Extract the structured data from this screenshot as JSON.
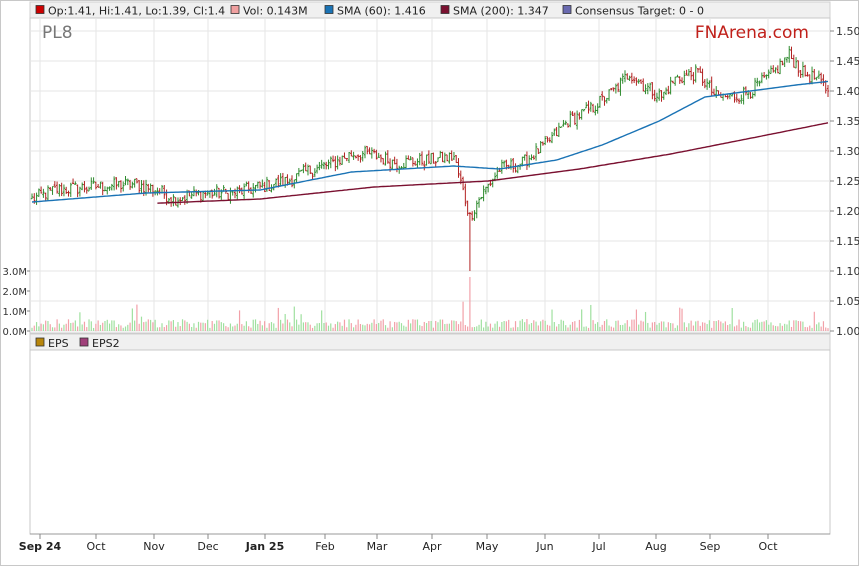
{
  "ticker": "PL8",
  "brand": "FNArena.com",
  "legend_top": [
    {
      "label": "Op:1.41, Hi:1.41, Lo:1.39, Cl:1.4",
      "color": "#cc0000"
    },
    {
      "label": "Vol: 0.143M",
      "color": "#f0a0a0"
    },
    {
      "label": "SMA (60): 1.416",
      "color": "#1a73b5"
    },
    {
      "label": "SMA (200): 1.347",
      "color": "#7a1030"
    },
    {
      "label": "Consensus Target: 0 - 0",
      "color": "#6a6ab0"
    }
  ],
  "legend_bottom": [
    {
      "label": "EPS",
      "color": "#b8860b"
    },
    {
      "label": "EPS2",
      "color": "#a0407a"
    }
  ],
  "colors": {
    "up": "#2e8b2e",
    "down": "#b22222",
    "sma60": "#1a73b5",
    "sma200": "#7a1030",
    "vol_up": "#9fe09f",
    "vol_down": "#f2a0a8",
    "grid": "#e6e6e6",
    "panel_bg": "#f0f0f0"
  },
  "chart_data": [
    {
      "type": "candlestick",
      "title": "PL8",
      "x_months": [
        "Sep 24",
        "Oct",
        "Nov",
        "Dec",
        "Jan 25",
        "Feb",
        "Mar",
        "Apr",
        "May",
        "Jun",
        "Jul",
        "Aug",
        "Sep",
        "Oct"
      ],
      "y_ticks": [
        "1.50",
        "1.45",
        "1.40",
        "1.35",
        "1.30",
        "1.25",
        "1.20",
        "1.15",
        "1.10",
        "1.05",
        "1.00"
      ],
      "ylim": [
        1.0,
        1.5
      ],
      "close_path": [
        [
          0,
          1.22
        ],
        [
          10,
          1.235
        ],
        [
          25,
          1.24
        ],
        [
          45,
          1.245
        ],
        [
          55,
          1.235
        ],
        [
          62,
          1.22
        ],
        [
          75,
          1.23
        ],
        [
          88,
          1.23
        ],
        [
          100,
          1.24
        ],
        [
          112,
          1.25
        ],
        [
          120,
          1.265
        ],
        [
          132,
          1.28
        ],
        [
          140,
          1.295
        ],
        [
          148,
          1.295
        ],
        [
          160,
          1.28
        ],
        [
          175,
          1.285
        ],
        [
          185,
          1.29
        ],
        [
          192,
          1.19
        ],
        [
          196,
          1.22
        ],
        [
          205,
          1.27
        ],
        [
          215,
          1.28
        ],
        [
          225,
          1.31
        ],
        [
          235,
          1.35
        ],
        [
          245,
          1.37
        ],
        [
          255,
          1.4
        ],
        [
          262,
          1.43
        ],
        [
          268,
          1.41
        ],
        [
          276,
          1.39
        ],
        [
          282,
          1.42
        ],
        [
          292,
          1.43
        ],
        [
          300,
          1.39
        ],
        [
          308,
          1.39
        ],
        [
          315,
          1.4
        ],
        [
          325,
          1.43
        ],
        [
          332,
          1.46
        ],
        [
          338,
          1.43
        ],
        [
          344,
          1.42
        ],
        [
          349,
          1.4
        ]
      ],
      "sma60": [
        [
          0,
          1.215
        ],
        [
          50,
          1.23
        ],
        [
          100,
          1.235
        ],
        [
          140,
          1.265
        ],
        [
          185,
          1.275
        ],
        [
          205,
          1.27
        ],
        [
          230,
          1.285
        ],
        [
          250,
          1.31
        ],
        [
          275,
          1.35
        ],
        [
          295,
          1.39
        ],
        [
          315,
          1.4
        ],
        [
          335,
          1.41
        ],
        [
          349,
          1.416
        ]
      ],
      "sma200": [
        [
          55,
          1.213
        ],
        [
          100,
          1.22
        ],
        [
          150,
          1.24
        ],
        [
          200,
          1.25
        ],
        [
          240,
          1.27
        ],
        [
          280,
          1.295
        ],
        [
          320,
          1.325
        ],
        [
          349,
          1.347
        ]
      ],
      "last": {
        "open": 1.41,
        "high": 1.41,
        "low": 1.39,
        "close": 1.4
      },
      "volume_ticks": [
        "3.0M",
        "2.0M",
        "1.0M",
        "0.0M"
      ],
      "volume_ylim": [
        0,
        3.0
      ],
      "last_volume_m": 0.143
    },
    {
      "type": "bar",
      "series": [
        {
          "name": "EPS"
        },
        {
          "name": "EPS2"
        }
      ],
      "values": []
    }
  ]
}
